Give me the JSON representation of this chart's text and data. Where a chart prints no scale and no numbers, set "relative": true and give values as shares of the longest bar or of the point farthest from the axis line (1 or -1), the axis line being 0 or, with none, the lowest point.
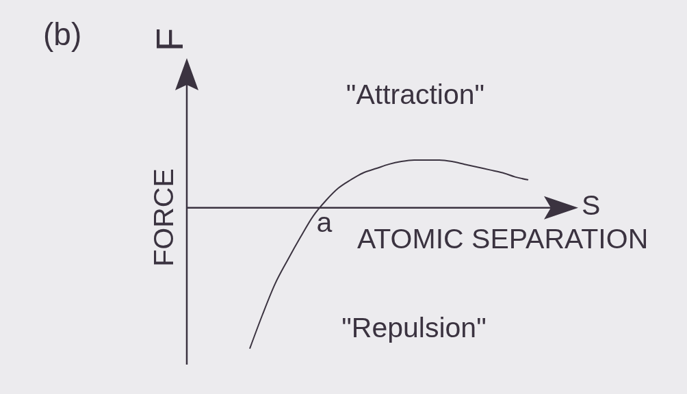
{
  "chart_data": {
    "type": "line",
    "title": "(b)",
    "xlabel": "ATOMIC SEPARATION",
    "ylabel": "FORCE",
    "relative": true,
    "categories": [
      null,
      null,
      null,
      null,
      null,
      null,
      null,
      null,
      null,
      null,
      null,
      null,
      null,
      null,
      null,
      null,
      null,
      null,
      null,
      null,
      null,
      null,
      null,
      null,
      null,
      null,
      null,
      null,
      null,
      null,
      null,
      null
    ],
    "series": [
      {
        "color": "#3b3340",
        "values": [
          null,
          null,
          null,
          null,
          null,
          -1,
          -0.76,
          -0.54,
          -0.37,
          -0.21,
          -0.06,
          0.05,
          0.14,
          0.2,
          0.25,
          0.28,
          0.31,
          0.33,
          0.34,
          0.34,
          0.34,
          0.33,
          0.31,
          0.29,
          0.27,
          0.25,
          0.22,
          0.2,
          null,
          null,
          null,
          null
        ]
      }
    ],
    "annotations": [
      "F",
      "S",
      {
        "text": "a",
        "y": 0
      },
      "\"Attraction\"",
      "\"Repulsion\""
    ]
  }
}
